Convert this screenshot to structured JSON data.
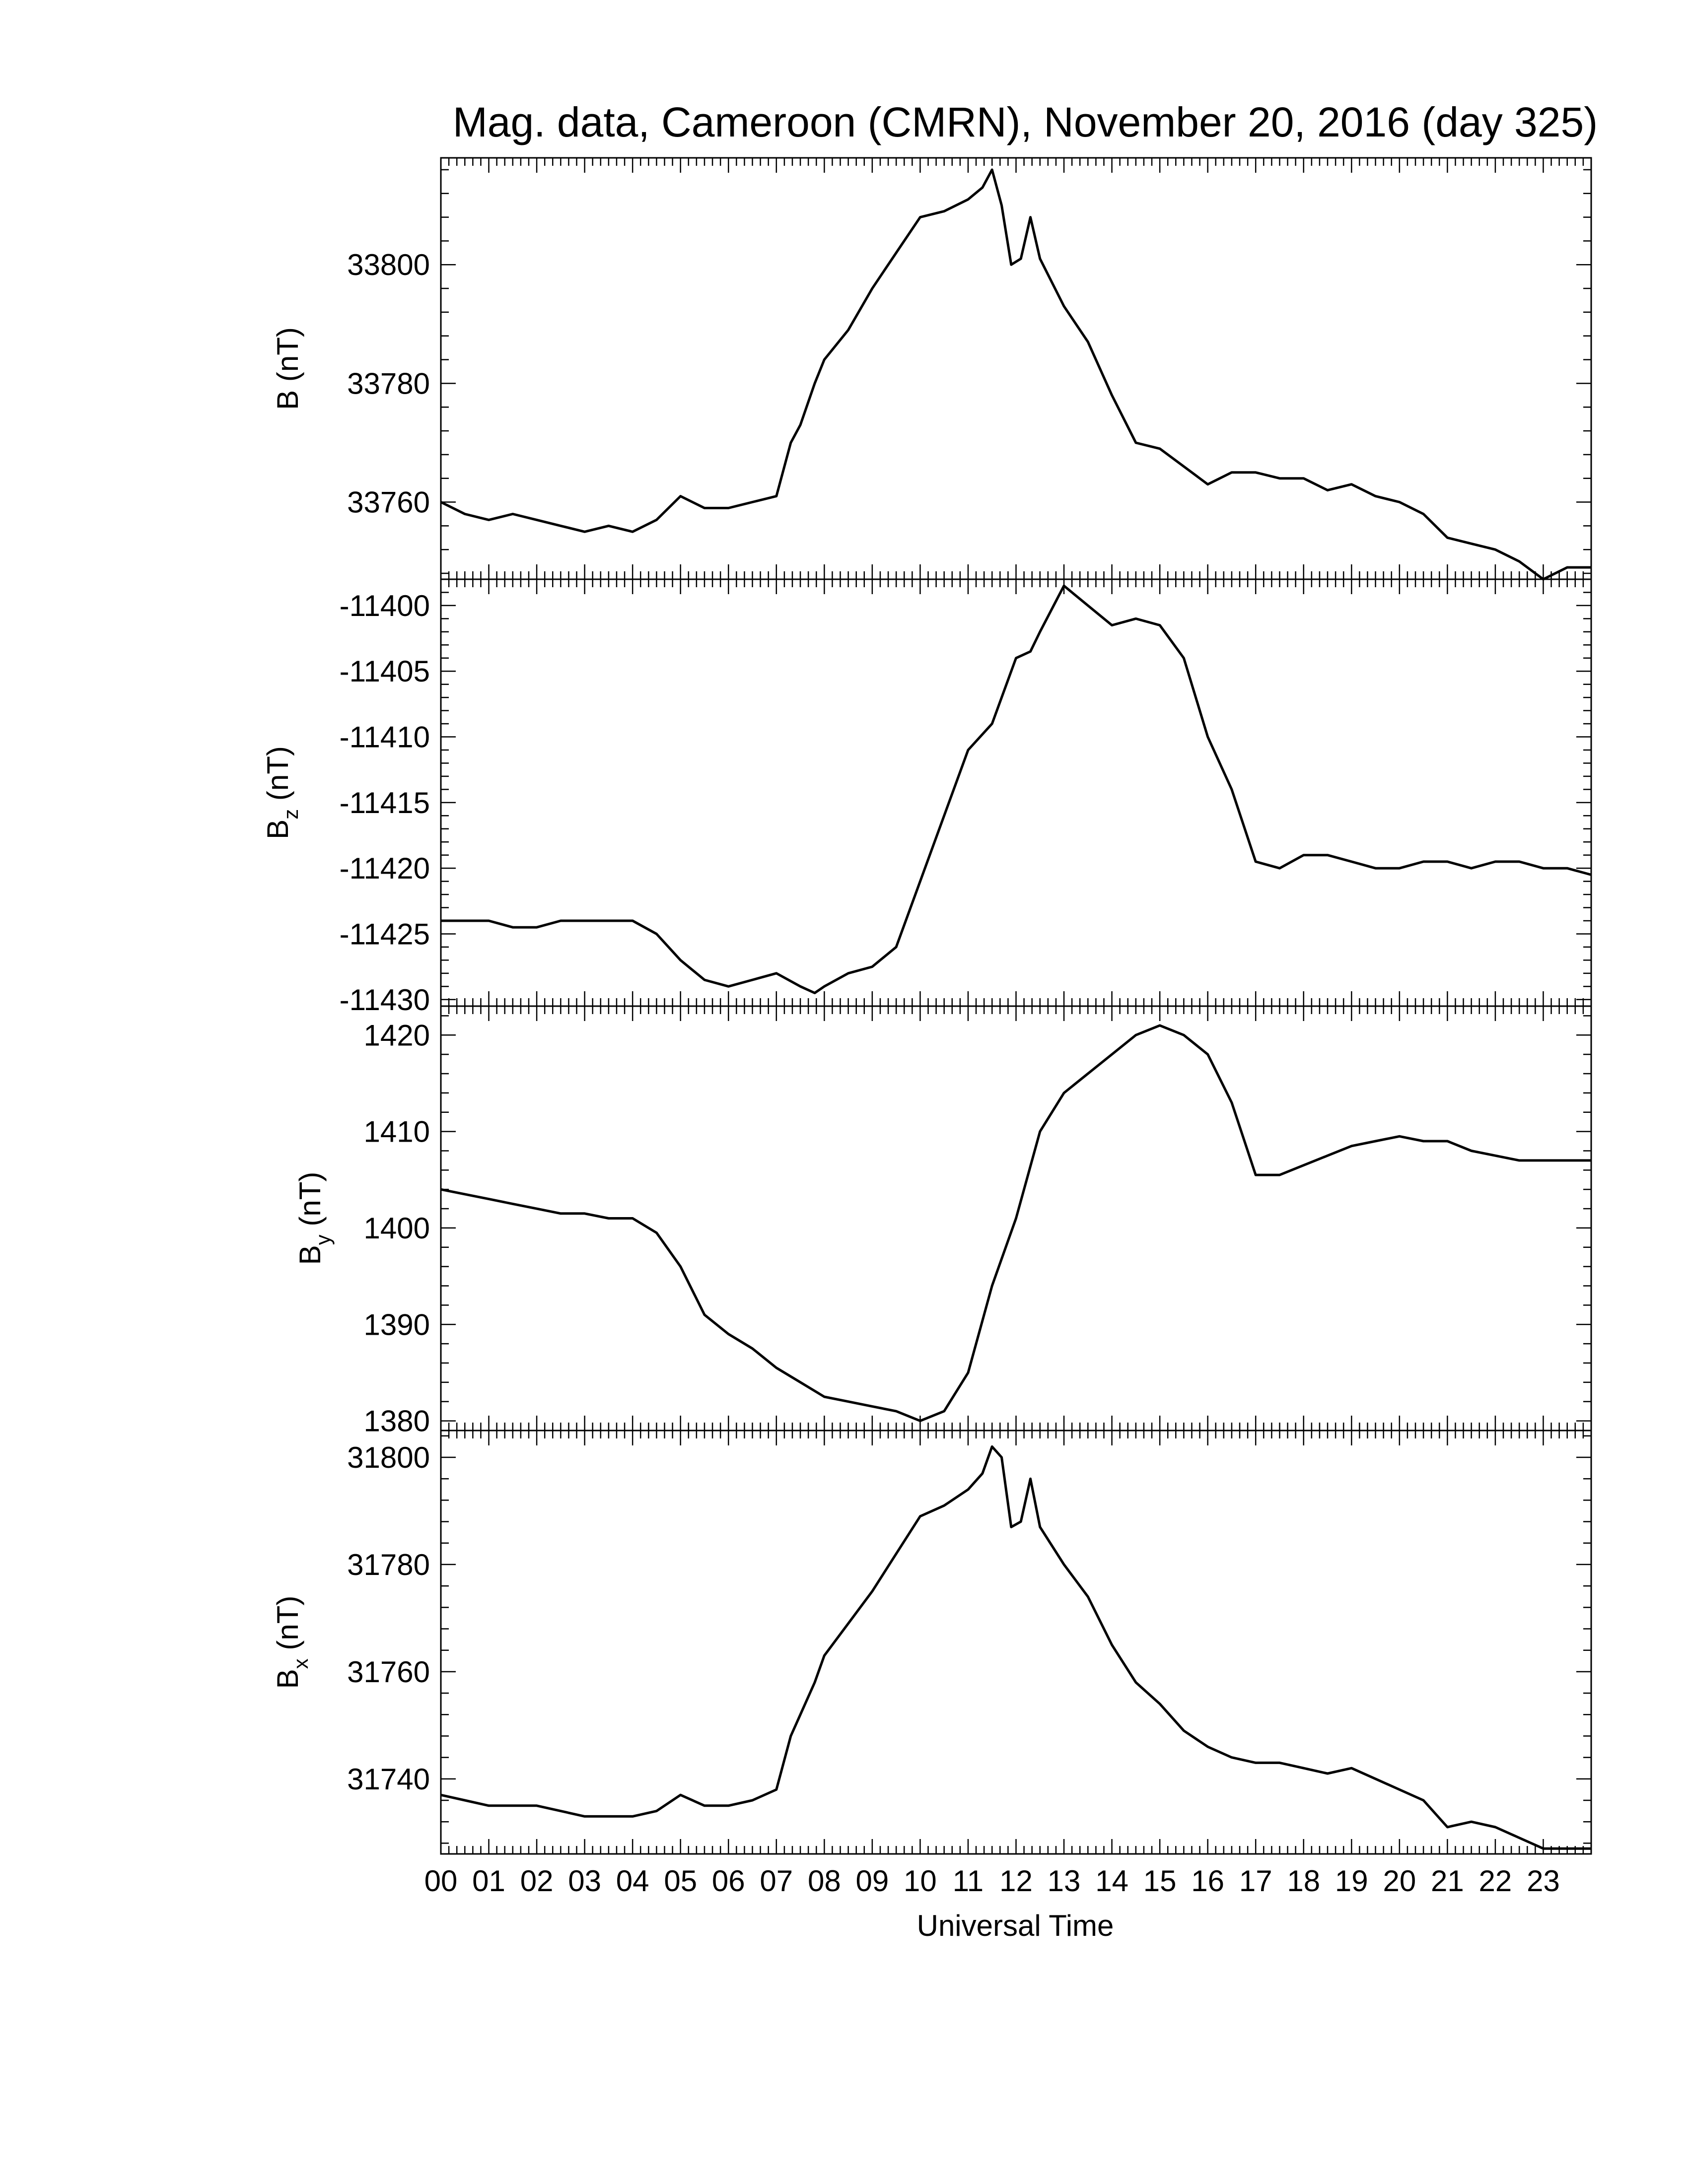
{
  "chart_data": {
    "type": "line",
    "title": "Mag. data, Cameroon (CMRN), November 20, 2016 (day 325)",
    "xlabel": "Universal Time",
    "xlim": [
      0,
      24
    ],
    "x_tick_labels": [
      "00",
      "01",
      "02",
      "03",
      "04",
      "05",
      "06",
      "07",
      "08",
      "09",
      "10",
      "11",
      "12",
      "13",
      "14",
      "15",
      "16",
      "17",
      "18",
      "19",
      "20",
      "21",
      "22",
      "23"
    ],
    "line_color": "#000000",
    "panels": [
      {
        "id": "B",
        "ylabel_main": "B",
        "ylabel_sub": "",
        "ylabel_unit": " (nT)",
        "ylim": [
          33747,
          33818
        ],
        "yticks": [
          33760,
          33780,
          33800
        ],
        "x": [
          0,
          0.5,
          1,
          1.5,
          2,
          2.5,
          3,
          3.5,
          4,
          4.5,
          5,
          5.5,
          6,
          6.5,
          7,
          7.3,
          7.5,
          7.8,
          8,
          8.5,
          9,
          9.5,
          10,
          10.5,
          11,
          11.3,
          11.5,
          11.7,
          11.9,
          12.1,
          12.3,
          12.5,
          13,
          13.5,
          14,
          14.5,
          15,
          15.5,
          16,
          16.5,
          17,
          17.5,
          18,
          18.5,
          19,
          19.5,
          20,
          20.5,
          21,
          21.5,
          22,
          22.5,
          23,
          23.5,
          24
        ],
        "values": [
          33760,
          33758,
          33757,
          33758,
          33757,
          33756,
          33755,
          33756,
          33755,
          33757,
          33761,
          33759,
          33759,
          33760,
          33761,
          33770,
          33773,
          33780,
          33784,
          33789,
          33796,
          33802,
          33808,
          33809,
          33811,
          33813,
          33816,
          33810,
          33800,
          33801,
          33808,
          33801,
          33793,
          33787,
          33778,
          33770,
          33769,
          33766,
          33763,
          33765,
          33765,
          33764,
          33764,
          33762,
          33763,
          33761,
          33760,
          33758,
          33754,
          33753,
          33752,
          33750,
          33747,
          33749,
          33749
        ]
      },
      {
        "id": "Bz",
        "ylabel_main": "B",
        "ylabel_sub": "z",
        "ylabel_unit": " (nT)",
        "ylim": [
          -11430.5,
          -11398
        ],
        "yticks": [
          -11400,
          -11405,
          -11410,
          -11415,
          -11420,
          -11425,
          -11430
        ],
        "x": [
          0,
          0.5,
          1,
          1.5,
          2,
          2.5,
          3,
          3.5,
          4,
          4.5,
          5,
          5.5,
          6,
          6.5,
          7,
          7.5,
          7.8,
          8,
          8.5,
          9,
          9.5,
          10,
          10.5,
          11,
          11.5,
          12,
          12.3,
          12.5,
          13,
          13.5,
          14,
          14.5,
          15,
          15.5,
          16,
          16.5,
          17,
          17.5,
          18,
          18.5,
          19,
          19.5,
          20,
          20.5,
          21,
          21.5,
          22,
          22.5,
          23,
          23.5,
          24
        ],
        "values": [
          -11424,
          -11424,
          -11424,
          -11424.5,
          -11424.5,
          -11424,
          -11424,
          -11424,
          -11424,
          -11425,
          -11427,
          -11428.5,
          -11429,
          -11428.5,
          -11428,
          -11429,
          -11429.5,
          -11429,
          -11428,
          -11427.5,
          -11426,
          -11421,
          -11416,
          -11411,
          -11409,
          -11404,
          -11403.5,
          -11402,
          -11398.5,
          -11400,
          -11401.5,
          -11401,
          -11401.5,
          -11404,
          -11410,
          -11414,
          -11419.5,
          -11420,
          -11419,
          -11419,
          -11419.5,
          -11420,
          -11420,
          -11419.5,
          -11419.5,
          -11420,
          -11419.5,
          -11419.5,
          -11420,
          -11420,
          -11420.5
        ]
      },
      {
        "id": "By",
        "ylabel_main": "B",
        "ylabel_sub": "y",
        "ylabel_unit": " (nT)",
        "ylim": [
          1379,
          1423
        ],
        "yticks": [
          1380,
          1390,
          1400,
          1410,
          1420
        ],
        "x": [
          0,
          0.5,
          1,
          1.5,
          2,
          2.5,
          3,
          3.5,
          4,
          4.5,
          5,
          5.5,
          6,
          6.5,
          7,
          7.5,
          8,
          8.5,
          9,
          9.5,
          10,
          10.5,
          11,
          11.5,
          12,
          12.5,
          13,
          13.5,
          14,
          14.5,
          15,
          15.5,
          16,
          16.5,
          17,
          17.5,
          18,
          18.5,
          19,
          19.5,
          20,
          20.5,
          21,
          21.5,
          22,
          22.5,
          23,
          23.5,
          24
        ],
        "values": [
          1404,
          1403.5,
          1403,
          1402.5,
          1402,
          1401.5,
          1401.5,
          1401,
          1401,
          1399.5,
          1396,
          1391,
          1389,
          1387.5,
          1385.5,
          1384,
          1382.5,
          1382,
          1381.5,
          1381,
          1380,
          1381,
          1385,
          1394,
          1401,
          1410,
          1414,
          1416,
          1418,
          1420,
          1421,
          1420,
          1418,
          1413,
          1405.5,
          1405.5,
          1406.5,
          1407.5,
          1408.5,
          1409,
          1409.5,
          1409,
          1409,
          1408,
          1407.5,
          1407,
          1407,
          1407,
          1407
        ]
      },
      {
        "id": "Bx",
        "ylabel_main": "B",
        "ylabel_sub": "x",
        "ylabel_unit": " (nT)",
        "ylim": [
          1726,
          1805
        ],
        "ylim_offset": 30000,
        "yticks": [
          31740,
          31760,
          31780,
          31800
        ],
        "x": [
          0,
          0.5,
          1,
          1.5,
          2,
          2.5,
          3,
          3.5,
          4,
          4.5,
          5,
          5.5,
          6,
          6.5,
          7,
          7.3,
          7.5,
          7.8,
          8,
          8.5,
          9,
          9.5,
          10,
          10.5,
          11,
          11.3,
          11.5,
          11.7,
          11.9,
          12.1,
          12.3,
          12.5,
          13,
          13.5,
          14,
          14.5,
          15,
          15.5,
          16,
          16.5,
          17,
          17.5,
          18,
          18.5,
          19,
          19.5,
          20,
          20.5,
          21,
          21.5,
          22,
          22.5,
          23,
          23.5,
          24
        ],
        "values": [
          31737,
          31736,
          31735,
          31735,
          31735,
          31734,
          31733,
          31733,
          31733,
          31734,
          31737,
          31735,
          31735,
          31736,
          31738,
          31748,
          31752,
          31758,
          31763,
          31769,
          31775,
          31782,
          31789,
          31791,
          31794,
          31797,
          31802,
          31800,
          31787,
          31788,
          31796,
          31787,
          31780,
          31774,
          31765,
          31758,
          31754,
          31749,
          31746,
          31744,
          31743,
          31743,
          31742,
          31741,
          31742,
          31740,
          31738,
          31736,
          31731,
          31732,
          31731,
          31729,
          31727,
          31727,
          31727
        ]
      }
    ]
  }
}
